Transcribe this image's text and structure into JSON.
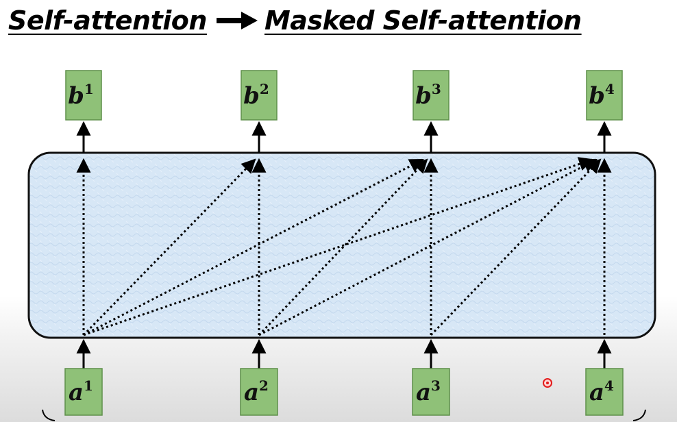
{
  "title": {
    "left": "Self-attention",
    "right": "Masked Self-attention",
    "arrow_icon": "right-arrow-icon"
  },
  "outputs": [
    {
      "base": "b",
      "sup": "1"
    },
    {
      "base": "b",
      "sup": "2"
    },
    {
      "base": "b",
      "sup": "3"
    },
    {
      "base": "b",
      "sup": "4"
    }
  ],
  "inputs": [
    {
      "base": "a",
      "sup": "1"
    },
    {
      "base": "a",
      "sup": "2"
    },
    {
      "base": "a",
      "sup": "3"
    },
    {
      "base": "a",
      "sup": "4"
    }
  ],
  "connections": [
    {
      "from": 0,
      "to": 0
    },
    {
      "from": 0,
      "to": 1
    },
    {
      "from": 0,
      "to": 2
    },
    {
      "from": 0,
      "to": 3
    },
    {
      "from": 1,
      "to": 1
    },
    {
      "from": 1,
      "to": 2
    },
    {
      "from": 1,
      "to": 3
    },
    {
      "from": 2,
      "to": 2
    },
    {
      "from": 2,
      "to": 3
    },
    {
      "from": 3,
      "to": 3
    }
  ],
  "colors": {
    "node_fill": "#8fc178",
    "node_stroke": "#5e8f4a",
    "panel_fill": "#d6e6f5",
    "panel_stroke": "#111111",
    "cursor": "#e31b1b"
  },
  "icons": {
    "cursor": "cursor-dot-icon"
  }
}
